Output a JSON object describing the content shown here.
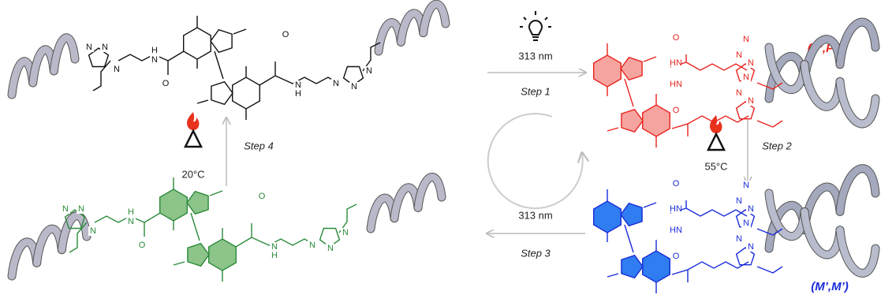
{
  "steps": [
    {
      "label": "Step 1",
      "condition": "313 nm"
    },
    {
      "label": "Step 2",
      "condition": "55°C"
    },
    {
      "label": "Step 3",
      "condition": "313 nm"
    },
    {
      "label": "Step 4",
      "condition": "20°C"
    }
  ],
  "states": [
    {
      "label": "(P’,P’)"
    },
    {
      "label": "(M’,M’)"
    }
  ],
  "molecules": [
    {
      "atoms": [
        "N",
        "N",
        "N",
        "N",
        "H",
        "O",
        "O",
        "N",
        "H",
        "N",
        "N",
        "N"
      ]
    },
    {
      "atoms": [
        "N",
        "N",
        "N",
        "N",
        "H",
        "O",
        "O",
        "N",
        "H",
        "N",
        "N",
        "N"
      ]
    },
    {
      "atoms": [
        "O",
        "HN",
        "HN",
        "O",
        "N",
        "N",
        "N",
        "N",
        "N",
        "N"
      ]
    },
    {
      "atoms": [
        "O",
        "HN",
        "HN",
        "O",
        "N",
        "N",
        "N",
        "N",
        "N",
        "N"
      ]
    }
  ]
}
